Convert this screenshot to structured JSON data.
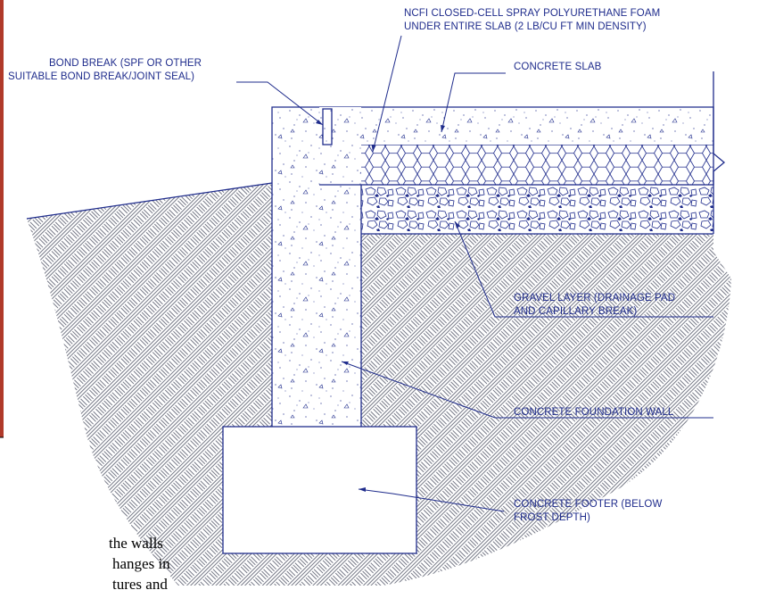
{
  "labels": {
    "spray_foam_line1": "NCFI CLOSED-CELL SPRAY POLYURETHANE FOAM",
    "spray_foam_line2": "UNDER ENTIRE SLAB (2 LB/CU FT MIN DENSITY)",
    "bond_break_line1": "BOND BREAK (SPF OR OTHER",
    "bond_break_line2": "SUITABLE BOND BREAK/JOINT SEAL)",
    "concrete_slab": "CONCRETE SLAB",
    "gravel_line1": "GRAVEL LAYER (DRAINAGE PAD",
    "gravel_line2": "AND CAPILLARY BREAK)",
    "foundation_wall": "CONCRETE FOUNDATION WALL",
    "footer_line1": "CONCRETE FOOTER (BELOW",
    "footer_line2": "FROST DEPTH)"
  },
  "body_text": {
    "line1": "the walls",
    "line2": "hanges in",
    "line3": "tures and"
  },
  "colors": {
    "line": "#1f2c8c",
    "hatch": "#3a3f52",
    "accent_bar": "#b03a2a"
  }
}
